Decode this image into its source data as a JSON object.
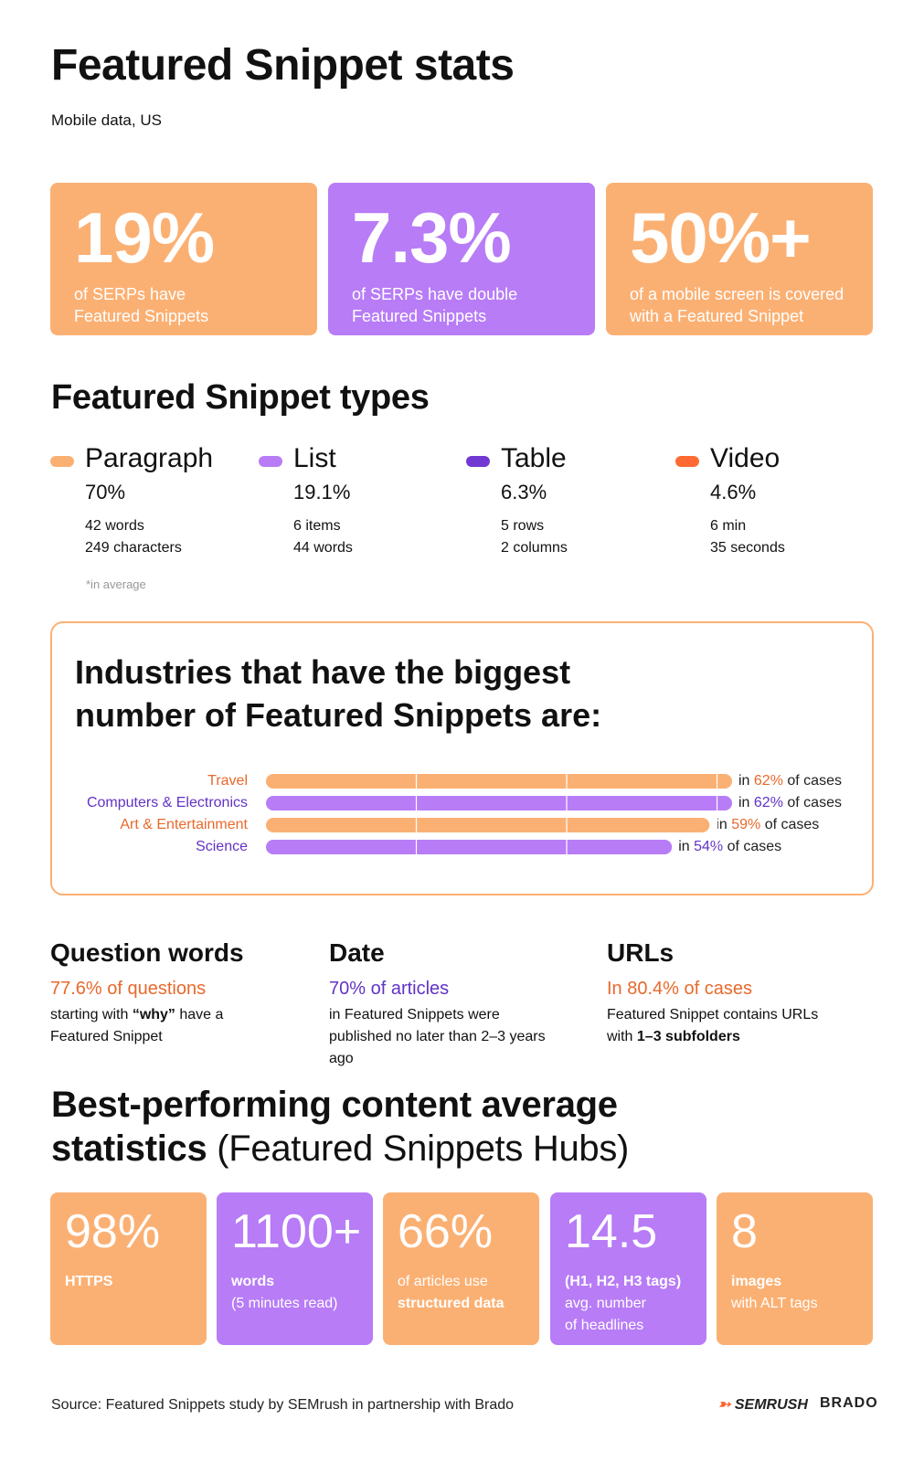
{
  "header": {
    "title": "Featured Snippet stats",
    "subtitle": "Mobile data, US"
  },
  "stat_cards": [
    {
      "value": "19%",
      "lines": [
        "of SERPs have",
        "Featured Snippets"
      ],
      "color": "#fbb073"
    },
    {
      "value": "7.3%",
      "lines": [
        "of SERPs have double",
        "Featured Snippets"
      ],
      "color": "#b77cf6"
    },
    {
      "value": "50%+",
      "lines": [
        "of a mobile screen is covered",
        "with a Featured Snippet"
      ],
      "color": "#fbb073"
    }
  ],
  "types_section": {
    "title": "Featured Snippet types",
    "note": "*in average",
    "types": [
      {
        "name": "Paragraph",
        "share": "70%",
        "details": [
          "42 words",
          "249 characters"
        ],
        "color": "#fbb073"
      },
      {
        "name": "List",
        "share": "19.1%",
        "details": [
          "6 items",
          "44 words"
        ],
        "color": "#b77cf6"
      },
      {
        "name": "Table",
        "share": "6.3%",
        "details": [
          "5 rows",
          "2 columns"
        ],
        "color": "#7139d1"
      },
      {
        "name": "Video",
        "share": "4.6%",
        "details": [
          "6 min",
          "35 seconds"
        ],
        "color": "#ff6a33"
      }
    ]
  },
  "chart_data": {
    "type": "bar",
    "orientation": "horizontal",
    "title_lines": [
      "Industries that have the biggest",
      "number of Featured Snippets are:"
    ],
    "categories": [
      "Travel",
      "Computers & Electronics",
      "Art & Entertainment",
      "Science"
    ],
    "values": [
      62,
      62,
      59,
      54
    ],
    "value_labels": [
      "62%",
      "62%",
      "59%",
      "54%"
    ],
    "label_prefix": "in",
    "label_suffix": "of cases",
    "colors": [
      "#fbb073",
      "#b77cf6",
      "#fbb073",
      "#b77cf6"
    ],
    "text_colors": [
      "#e8692c",
      "#6233c6",
      "#e8692c",
      "#6233c6"
    ],
    "xlim": [
      0,
      62
    ],
    "grid_values": [
      20,
      40,
      60
    ],
    "border_color": "#fbb073"
  },
  "facts": [
    {
      "title": "Question words",
      "highlight": "77.6% of questions",
      "color": "#e8692c",
      "parts": [
        {
          "t": "starting with "
        },
        {
          "t": "“why”",
          "b": true
        },
        {
          "t": " have a Featured Snippet"
        }
      ]
    },
    {
      "title": "Date",
      "highlight": "70% of articles",
      "color": "#6233c6",
      "parts": [
        {
          "t": "in Featured Snippets were published no later than 2–3 years ago"
        }
      ]
    },
    {
      "title": "URLs",
      "highlight": "In 80.4% of cases",
      "color": "#e8692c",
      "parts": [
        {
          "t": "Featured Snippet contains URLs with "
        },
        {
          "t": "1–3 subfolders",
          "b": true
        }
      ]
    }
  ],
  "hubs": {
    "title_bold": "Best-performing content average",
    "title_bold2": "statistics",
    "title_rest": "(Featured Snippets Hubs)",
    "cards": [
      {
        "value": "98%",
        "parts": [
          {
            "t": "HTTPS",
            "b": true
          }
        ],
        "color": "#fbb073"
      },
      {
        "value": "1100+",
        "parts": [
          {
            "t": "words",
            "b": true
          },
          {
            "t": "(5 minutes read)"
          }
        ],
        "color": "#b77cf6"
      },
      {
        "value": "66%",
        "parts": [
          {
            "t": "of articles use"
          },
          {
            "t": "structured data",
            "b": true
          }
        ],
        "color": "#fbb073"
      },
      {
        "value": "14.5",
        "parts": [
          {
            "t": "(H1, H2, H3 tags)",
            "b": true
          },
          {
            "t": "avg. number"
          },
          {
            "t": "of headlines"
          }
        ],
        "color": "#b77cf6"
      },
      {
        "value": "8",
        "parts": [
          {
            "t": "images",
            "b": true
          },
          {
            "t": "with ALT tags"
          }
        ],
        "color": "#fbb073"
      }
    ]
  },
  "footer": {
    "source": "Source: Featured Snippets study by SEMrush in partnership with Brado",
    "logos": [
      "SEMRUSH",
      "BRADO"
    ]
  }
}
